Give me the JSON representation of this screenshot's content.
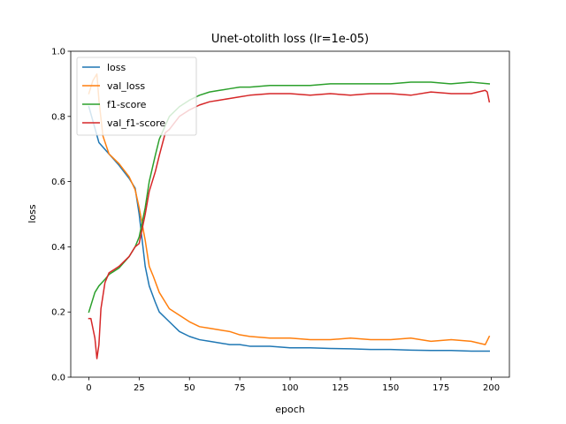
{
  "chart_data": {
    "type": "line",
    "title": "Unet-otolith loss (lr=1e-05)",
    "xlabel": "epoch",
    "ylabel": "loss",
    "xlim": [
      -9,
      209
    ],
    "ylim": [
      0.0,
      1.0
    ],
    "xticks": [
      0,
      25,
      50,
      75,
      100,
      125,
      150,
      175,
      200
    ],
    "yticks": [
      0.0,
      0.2,
      0.4,
      0.6,
      0.8,
      1.0
    ],
    "xtick_labels": [
      "0",
      "25",
      "50",
      "75",
      "100",
      "125",
      "150",
      "175",
      "200"
    ],
    "ytick_labels": [
      "0.0",
      "0.2",
      "0.4",
      "0.6",
      "0.8",
      "1.0"
    ],
    "grid": false,
    "legend_position": "top-left",
    "series": [
      {
        "name": "loss",
        "color": "#1f77b4",
        "x": [
          0,
          5,
          10,
          15,
          20,
          23,
          25,
          28,
          30,
          33,
          35,
          40,
          45,
          50,
          55,
          60,
          65,
          70,
          75,
          80,
          90,
          100,
          110,
          120,
          130,
          140,
          150,
          160,
          170,
          180,
          190,
          199
        ],
        "y": [
          0.83,
          0.72,
          0.685,
          0.65,
          0.61,
          0.58,
          0.5,
          0.34,
          0.28,
          0.23,
          0.2,
          0.17,
          0.14,
          0.125,
          0.115,
          0.11,
          0.105,
          0.1,
          0.1,
          0.095,
          0.095,
          0.09,
          0.09,
          0.088,
          0.087,
          0.085,
          0.085,
          0.083,
          0.082,
          0.082,
          0.08,
          0.08
        ]
      },
      {
        "name": "val_loss",
        "color": "#ff7f0e",
        "x": [
          0,
          2,
          4,
          5,
          7,
          10,
          15,
          20,
          23,
          25,
          28,
          30,
          32,
          35,
          38,
          40,
          45,
          50,
          55,
          60,
          65,
          70,
          75,
          80,
          90,
          100,
          110,
          120,
          130,
          140,
          150,
          160,
          170,
          180,
          190,
          197,
          199
        ],
        "y": [
          0.87,
          0.91,
          0.93,
          0.85,
          0.74,
          0.685,
          0.655,
          0.615,
          0.575,
          0.52,
          0.42,
          0.34,
          0.31,
          0.26,
          0.23,
          0.21,
          0.19,
          0.17,
          0.155,
          0.15,
          0.145,
          0.14,
          0.13,
          0.125,
          0.12,
          0.12,
          0.115,
          0.115,
          0.12,
          0.115,
          0.115,
          0.12,
          0.11,
          0.115,
          0.11,
          0.1,
          0.125
        ]
      },
      {
        "name": "f1-score",
        "color": "#2ca02c",
        "x": [
          0,
          3,
          5,
          8,
          10,
          15,
          20,
          23,
          25,
          28,
          30,
          33,
          35,
          40,
          45,
          50,
          55,
          60,
          65,
          70,
          75,
          80,
          90,
          100,
          110,
          120,
          130,
          140,
          150,
          160,
          170,
          180,
          190,
          199
        ],
        "y": [
          0.2,
          0.26,
          0.28,
          0.3,
          0.315,
          0.335,
          0.37,
          0.4,
          0.43,
          0.52,
          0.6,
          0.68,
          0.73,
          0.8,
          0.83,
          0.85,
          0.865,
          0.875,
          0.88,
          0.885,
          0.89,
          0.89,
          0.895,
          0.895,
          0.895,
          0.9,
          0.9,
          0.9,
          0.9,
          0.905,
          0.905,
          0.9,
          0.905,
          0.9
        ]
      },
      {
        "name": "val_f1-score",
        "color": "#d62728",
        "x": [
          0,
          1,
          2,
          3,
          4,
          5,
          6,
          7,
          8,
          10,
          15,
          20,
          23,
          25,
          28,
          30,
          33,
          35,
          38,
          40,
          45,
          50,
          55,
          60,
          65,
          70,
          75,
          80,
          90,
          100,
          110,
          120,
          130,
          140,
          150,
          160,
          170,
          180,
          190,
          197,
          198,
          199
        ],
        "y": [
          0.18,
          0.18,
          0.15,
          0.12,
          0.057,
          0.1,
          0.21,
          0.25,
          0.29,
          0.32,
          0.34,
          0.37,
          0.4,
          0.41,
          0.5,
          0.57,
          0.63,
          0.68,
          0.75,
          0.76,
          0.8,
          0.82,
          0.835,
          0.845,
          0.85,
          0.855,
          0.86,
          0.865,
          0.87,
          0.87,
          0.865,
          0.87,
          0.865,
          0.87,
          0.87,
          0.865,
          0.875,
          0.87,
          0.87,
          0.88,
          0.875,
          0.845
        ]
      }
    ]
  }
}
